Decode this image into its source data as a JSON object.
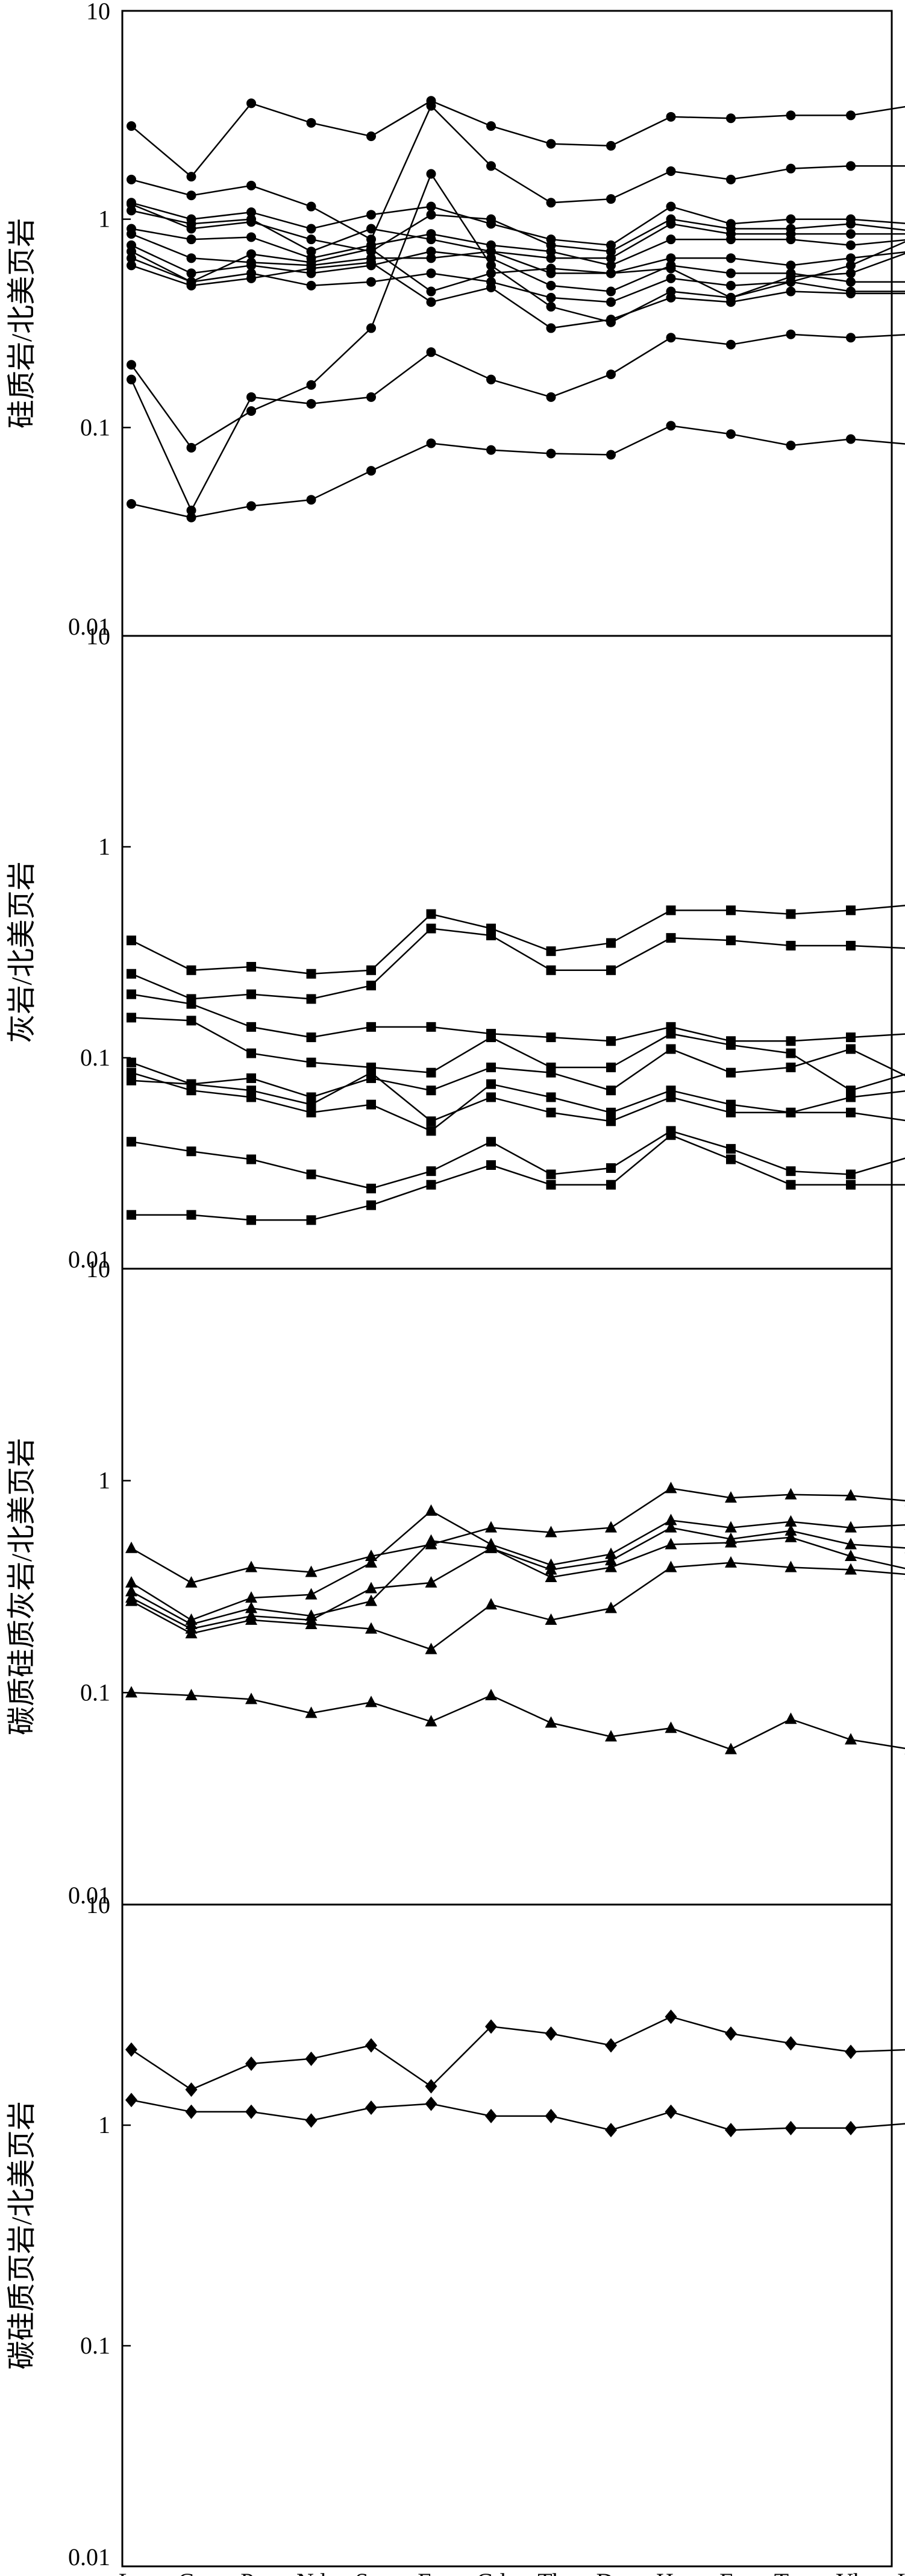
{
  "x_categories": [
    "La",
    "Ce",
    "Pr",
    "Nd",
    "Sm",
    "Eu",
    "Gd",
    "Tb",
    "Dy",
    "Ho",
    "Er",
    "Tm",
    "Yb",
    "Lu"
  ],
  "chart_data": [
    {
      "type": "line",
      "scale": "log",
      "marker": "circle",
      "ylabel": "硅质岩/北美页岩",
      "ylim": [
        0.01,
        10
      ],
      "yticks": [
        "10",
        "1",
        "0.1",
        "0.01"
      ],
      "categories": [
        "La",
        "Ce",
        "Pr",
        "Nd",
        "Sm",
        "Eu",
        "Gd",
        "Tb",
        "Dy",
        "Ho",
        "Er",
        "Tm",
        "Yb",
        "Lu"
      ],
      "series": [
        {
          "values": [
            2.8,
            1.6,
            3.6,
            2.9,
            2.5,
            3.7,
            2.8,
            2.3,
            2.25,
            3.1,
            3.05,
            3.15,
            3.15,
            3.5
          ]
        },
        {
          "values": [
            1.55,
            1.3,
            1.45,
            1.15,
            0.8,
            3.5,
            1.8,
            1.2,
            1.25,
            1.7,
            1.55,
            1.75,
            1.8,
            1.8
          ]
        },
        {
          "values": [
            1.2,
            1.0,
            1.08,
            0.9,
            1.05,
            1.15,
            0.95,
            0.8,
            0.75,
            1.15,
            0.95,
            1.0,
            1.0,
            0.95
          ]
        },
        {
          "values": [
            1.18,
            0.9,
            0.97,
            0.8,
            0.7,
            1.05,
            1.0,
            0.75,
            0.7,
            1.0,
            0.9,
            0.9,
            0.95,
            0.88
          ]
        },
        {
          "values": [
            1.1,
            0.95,
            1.0,
            0.7,
            0.9,
            0.8,
            0.7,
            0.65,
            0.65,
            0.95,
            0.85,
            0.85,
            0.85,
            0.85
          ]
        },
        {
          "values": [
            0.9,
            0.8,
            0.82,
            0.65,
            0.75,
            0.85,
            0.75,
            0.7,
            0.6,
            0.8,
            0.8,
            0.8,
            0.75,
            0.8
          ]
        },
        {
          "values": [
            0.85,
            0.65,
            0.62,
            0.6,
            0.65,
            0.65,
            0.7,
            0.55,
            0.55,
            0.65,
            0.65,
            0.6,
            0.65,
            0.7
          ]
        },
        {
          "values": [
            0.75,
            0.55,
            0.6,
            0.55,
            0.6,
            0.7,
            0.65,
            0.48,
            0.45,
            0.6,
            0.55,
            0.55,
            0.5,
            0.5
          ]
        },
        {
          "values": [
            0.7,
            0.5,
            0.55,
            0.48,
            0.5,
            0.55,
            0.5,
            0.42,
            0.4,
            0.52,
            0.48,
            0.5,
            0.45,
            0.45
          ]
        },
        {
          "values": [
            0.6,
            0.48,
            0.52,
            0.58,
            0.62,
            0.4,
            0.47,
            0.3,
            0.33,
            0.42,
            0.4,
            0.45,
            0.44,
            0.44
          ]
        },
        {
          "values": [
            0.65,
            0.5,
            0.68,
            0.62,
            0.72,
            0.45,
            0.55,
            0.58,
            0.55,
            0.58,
            0.42,
            0.53,
            0.55,
            0.7
          ]
        },
        {
          "values": [
            0.2,
            0.08,
            0.12,
            0.16,
            0.3,
            1.65,
            0.6,
            0.38,
            0.32,
            0.45,
            0.42,
            0.5,
            0.6,
            0.8
          ]
        },
        {
          "values": [
            0.17,
            0.04,
            0.14,
            0.13,
            0.14,
            0.23,
            0.17,
            0.14,
            0.18,
            0.27,
            0.25,
            0.28,
            0.27,
            0.28
          ]
        },
        {
          "values": [
            0.043,
            0.037,
            0.042,
            0.045,
            0.062,
            0.084,
            0.078,
            0.075,
            0.074,
            0.102,
            0.093,
            0.082,
            0.088,
            0.083
          ]
        }
      ]
    },
    {
      "type": "line",
      "scale": "log",
      "marker": "square",
      "ylabel": "灰岩/北美页岩",
      "ylim": [
        0.01,
        10
      ],
      "yticks": [
        "10",
        "1",
        "0.1",
        "0.01"
      ],
      "categories": [
        "La",
        "Ce",
        "Pr",
        "Nd",
        "Sm",
        "Eu",
        "Gd",
        "Tb",
        "Dy",
        "Ho",
        "Er",
        "Tm",
        "Yb",
        "Lu"
      ],
      "series": [
        {
          "values": [
            0.36,
            0.26,
            0.27,
            0.25,
            0.26,
            0.48,
            0.41,
            0.32,
            0.35,
            0.5,
            0.5,
            0.48,
            0.5,
            0.53
          ]
        },
        {
          "values": [
            0.25,
            0.19,
            0.2,
            0.19,
            0.22,
            0.41,
            0.38,
            0.26,
            0.26,
            0.37,
            0.36,
            0.34,
            0.34,
            0.33
          ]
        },
        {
          "values": [
            0.2,
            0.18,
            0.14,
            0.125,
            0.14,
            0.14,
            0.13,
            0.125,
            0.12,
            0.14,
            0.12,
            0.12,
            0.125,
            0.13
          ]
        },
        {
          "values": [
            0.155,
            0.15,
            0.105,
            0.095,
            0.09,
            0.085,
            0.125,
            0.09,
            0.09,
            0.13,
            0.115,
            0.105,
            0.07,
            0.085
          ]
        },
        {
          "values": [
            0.095,
            0.075,
            0.08,
            0.065,
            0.08,
            0.07,
            0.09,
            0.085,
            0.07,
            0.11,
            0.085,
            0.09,
            0.11,
            0.08
          ]
        },
        {
          "values": [
            0.085,
            0.07,
            0.065,
            0.055,
            0.06,
            0.045,
            0.075,
            0.065,
            0.055,
            0.07,
            0.06,
            0.055,
            0.065,
            0.07
          ]
        },
        {
          "values": [
            0.078,
            0.075,
            0.07,
            0.06,
            0.085,
            0.05,
            0.065,
            0.055,
            0.05,
            0.065,
            0.055,
            0.055,
            0.055,
            0.05
          ]
        },
        {
          "values": [
            0.04,
            0.036,
            0.033,
            0.028,
            0.024,
            0.029,
            0.04,
            0.028,
            0.03,
            0.045,
            0.037,
            0.029,
            0.028,
            0.034
          ]
        },
        {
          "values": [
            0.018,
            0.018,
            0.017,
            0.017,
            0.02,
            0.025,
            0.031,
            0.025,
            0.025,
            0.043,
            0.033,
            0.025,
            0.025,
            0.025
          ]
        }
      ]
    },
    {
      "type": "line",
      "scale": "log",
      "marker": "triangle",
      "ylabel": "碳质硅质灰岩/北美页岩",
      "ylim": [
        0.01,
        10
      ],
      "yticks": [
        "10",
        "1",
        "0.1",
        "0.01"
      ],
      "categories": [
        "La",
        "Ce",
        "Pr",
        "Nd",
        "Sm",
        "Eu",
        "Gd",
        "Tb",
        "Dy",
        "Ho",
        "Er",
        "Tm",
        "Yb",
        "Lu"
      ],
      "series": [
        {
          "values": [
            0.48,
            0.33,
            0.39,
            0.37,
            0.44,
            0.5,
            0.6,
            0.57,
            0.6,
            0.92,
            0.83,
            0.86,
            0.85,
            0.8
          ]
        },
        {
          "values": [
            0.33,
            0.22,
            0.28,
            0.29,
            0.41,
            0.72,
            0.5,
            0.4,
            0.45,
            0.65,
            0.6,
            0.64,
            0.6,
            0.62
          ]
        },
        {
          "values": [
            0.3,
            0.21,
            0.25,
            0.23,
            0.27,
            0.52,
            0.48,
            0.38,
            0.42,
            0.6,
            0.53,
            0.58,
            0.5,
            0.48
          ]
        },
        {
          "values": [
            0.28,
            0.2,
            0.23,
            0.22,
            0.31,
            0.33,
            0.48,
            0.35,
            0.39,
            0.5,
            0.51,
            0.54,
            0.44,
            0.38
          ]
        },
        {
          "values": [
            0.27,
            0.19,
            0.22,
            0.21,
            0.2,
            0.16,
            0.26,
            0.22,
            0.25,
            0.39,
            0.41,
            0.39,
            0.38,
            0.36
          ]
        },
        {
          "values": [
            0.1,
            0.097,
            0.093,
            0.08,
            0.09,
            0.073,
            0.097,
            0.072,
            0.062,
            0.068,
            0.054,
            0.075,
            0.06,
            0.054
          ]
        }
      ]
    },
    {
      "type": "line",
      "scale": "log",
      "marker": "diamond",
      "ylabel": "碳硅质页岩/北美页岩",
      "ylim": [
        0.01,
        10
      ],
      "yticks": [
        "10",
        "1",
        "0.1",
        "0.01"
      ],
      "categories": [
        "La",
        "Ce",
        "Pr",
        "Nd",
        "Sm",
        "Eu",
        "Gd",
        "Tb",
        "Dy",
        "Ho",
        "Er",
        "Tm",
        "Yb",
        "Lu"
      ],
      "series": [
        {
          "values": [
            2.2,
            1.45,
            1.9,
            2.0,
            2.3,
            1.5,
            2.8,
            2.6,
            2.3,
            3.1,
            2.6,
            2.35,
            2.15,
            2.2
          ]
        },
        {
          "values": [
            1.3,
            1.15,
            1.15,
            1.05,
            1.2,
            1.25,
            1.1,
            1.1,
            0.95,
            1.15,
            0.95,
            0.97,
            0.97,
            1.02
          ]
        }
      ]
    }
  ]
}
